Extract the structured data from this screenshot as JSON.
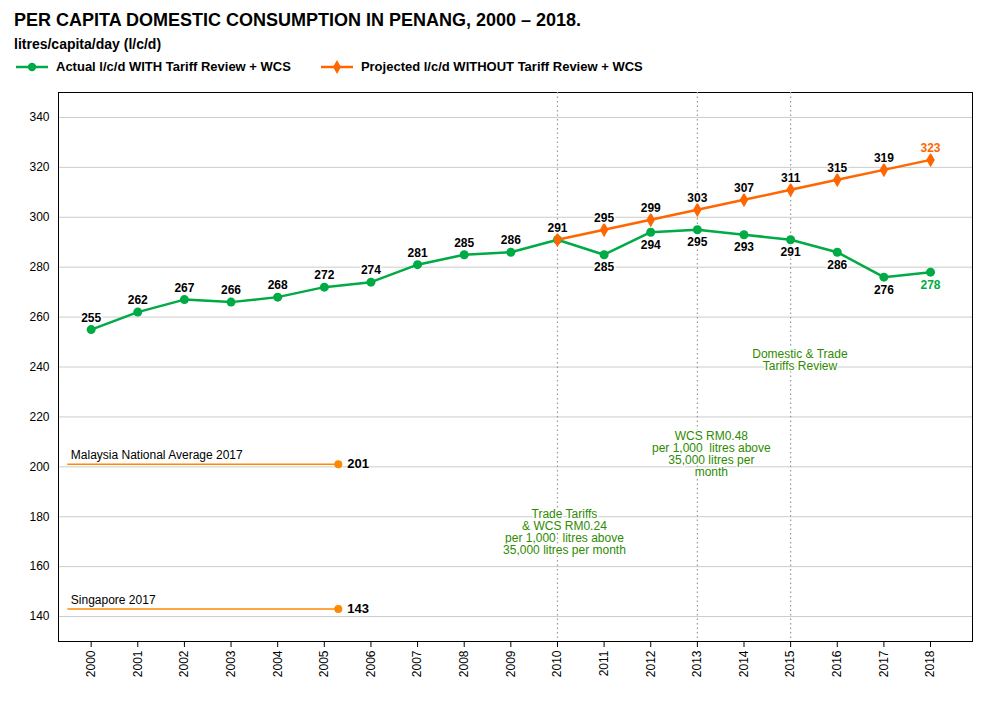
{
  "chart_data": {
    "type": "line",
    "title": "PER CAPITA DOMESTIC CONSUMPTION IN PENANG, 2000 – 2018.",
    "subtitle": "litres/capita/day (l/c/d)",
    "x": [
      2000,
      2001,
      2002,
      2003,
      2004,
      2005,
      2006,
      2007,
      2008,
      2009,
      2010,
      2011,
      2012,
      2013,
      2014,
      2015,
      2016,
      2017,
      2018
    ],
    "series": [
      {
        "name": "Actual l/c/d WITH Tariff Review + WCS",
        "color": "#00AA44",
        "marker": "circle",
        "line_style": "solid",
        "values": [
          255,
          262,
          267,
          266,
          268,
          272,
          274,
          281,
          285,
          286,
          291,
          285,
          294,
          295,
          293,
          291,
          286,
          276,
          278
        ]
      },
      {
        "name": "Projected l/c/d WITHOUT Tariff Review + WCS",
        "color": "#FF6600",
        "marker": "diamond",
        "line_style": "solid",
        "values": [
          null,
          null,
          null,
          null,
          null,
          null,
          null,
          null,
          null,
          null,
          291,
          295,
          299,
          303,
          307,
          311,
          315,
          319,
          323
        ]
      }
    ],
    "reference_lines": [
      {
        "label": "Malaysia National Average 2017",
        "value": 201,
        "xstart": 1999.5,
        "xend": 2005.3,
        "color": "#FF8800",
        "line_style": "dotted",
        "marker": "circle"
      },
      {
        "label": "Singapore 2017",
        "value": 143,
        "xstart": 1999.5,
        "xend": 2005.3,
        "color": "#FF8800",
        "line_style": "dotted",
        "marker": "circle"
      }
    ],
    "vlines": {
      "x": [
        2010,
        2013,
        2015
      ],
      "color": "#999999",
      "line_style": "dotted"
    },
    "annotations": [
      {
        "text": "Trade Tariffs\n& WCS RM0.24\nper 1,000  litres above\n35,000 litres per month",
        "x": 2010.15,
        "y": 183,
        "color": "#2E8B00"
      },
      {
        "text": "WCS RM0.48\nper 1,000  litres above\n35,000 litres per\nmonth",
        "x": 2013.3,
        "y": 214,
        "color": "#2E8B00"
      },
      {
        "text": "Domestic & Trade\nTariffs Review",
        "x": 2015.2,
        "y": 247,
        "color": "#2E8B00"
      }
    ],
    "xlim": [
      1999.3,
      2018.9
    ],
    "xticks": [
      2000,
      2001,
      2002,
      2003,
      2004,
      2005,
      2006,
      2007,
      2008,
      2009,
      2010,
      2011,
      2012,
      2013,
      2014,
      2015,
      2016,
      2017,
      2018
    ],
    "ylim": [
      130,
      350
    ],
    "yticks": [
      140,
      160,
      180,
      200,
      220,
      240,
      260,
      280,
      300,
      320,
      340
    ],
    "grid": true,
    "legend": "upper left",
    "data_labels": true
  }
}
